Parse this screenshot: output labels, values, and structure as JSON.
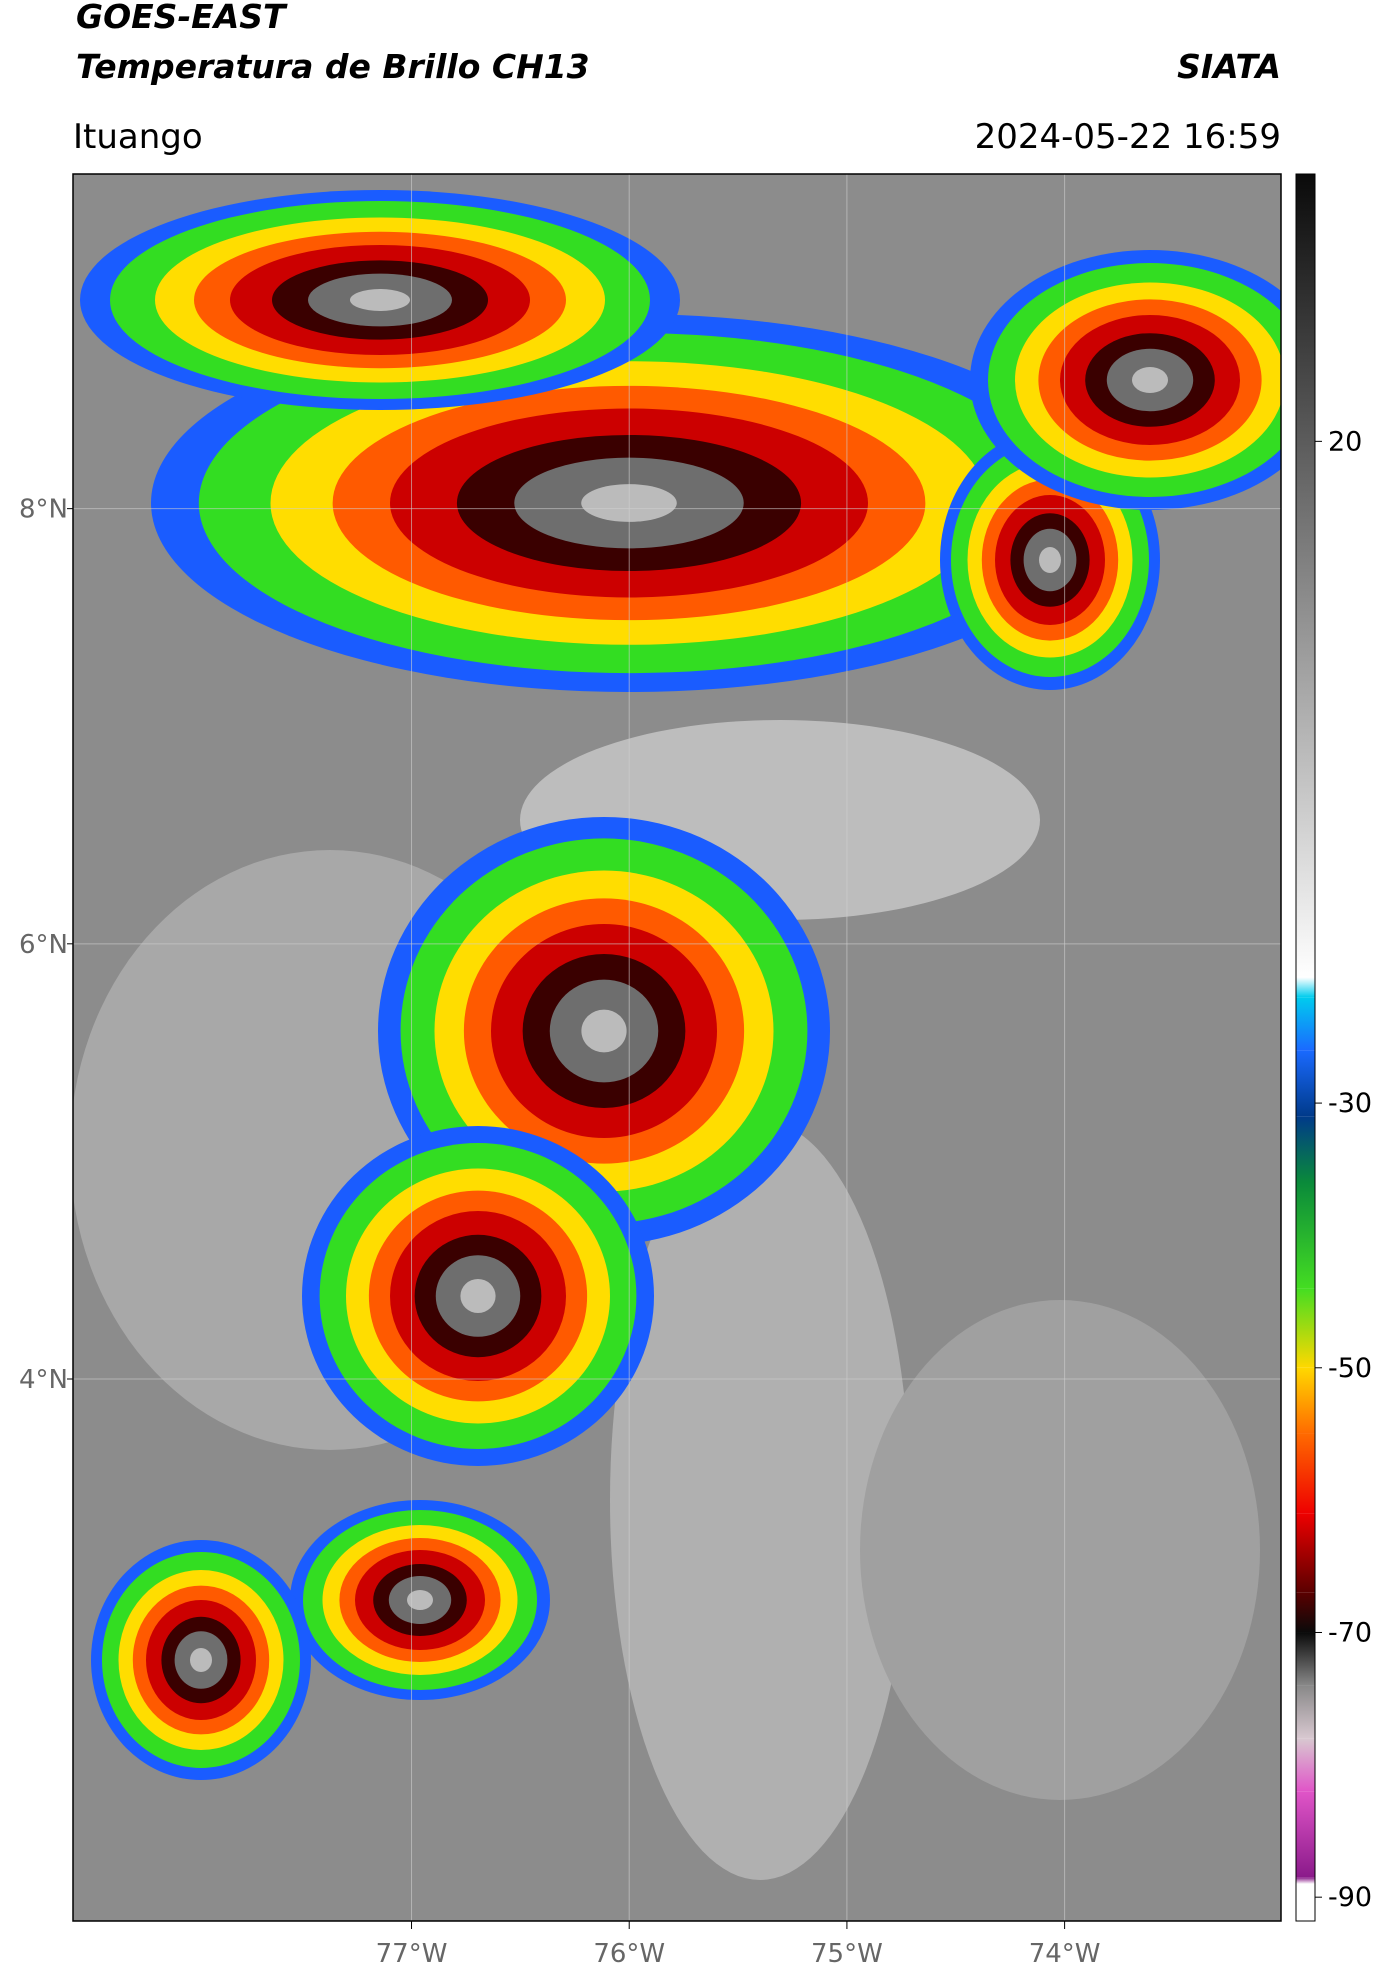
{
  "header": {
    "title": "GOES-EAST",
    "subtitle": "Temperatura de Brillo CH13",
    "brand": "SIATA",
    "location": "Ituango",
    "datetime": "2024-05-22 16:59"
  },
  "map": {
    "xlim": [
      -78.555,
      -73.006
    ],
    "ylim": [
      1.509,
      9.538
    ],
    "xticks": [
      {
        "value": -77,
        "label": "77°W"
      },
      {
        "value": -76,
        "label": "76°W"
      },
      {
        "value": -75,
        "label": "75°W"
      },
      {
        "value": -74,
        "label": "74°W"
      }
    ],
    "yticks": [
      {
        "value": 8,
        "label": "8°N"
      },
      {
        "value": 6,
        "label": "6°N"
      },
      {
        "value": 4,
        "label": "4°N"
      }
    ],
    "grid": true
  },
  "colorbar": {
    "lim": [
      -91.8,
      40.2
    ],
    "ticks": [
      20,
      -30,
      -50,
      -70,
      -90
    ],
    "stops": [
      [
        -91.8,
        "#ffffff"
      ],
      [
        -89,
        "#ffffff"
      ],
      [
        -88.5,
        "#8a1a8a"
      ],
      [
        -82,
        "#e055c8"
      ],
      [
        -78,
        "#d8c8d0"
      ],
      [
        -74,
        "#888888"
      ],
      [
        -70,
        "#0a0a0a"
      ],
      [
        -67,
        "#5a0000"
      ],
      [
        -61,
        "#ee0000"
      ],
      [
        -55,
        "#ff6a00"
      ],
      [
        -50,
        "#ffd800"
      ],
      [
        -44,
        "#44dd22"
      ],
      [
        -36,
        "#0a8a3a"
      ],
      [
        -31,
        "#003a8a"
      ],
      [
        -26,
        "#1a6aff"
      ],
      [
        -22,
        "#00ccee"
      ],
      [
        -20.5,
        "#ffffff"
      ],
      [
        40.2,
        "#0a0a0a"
      ]
    ]
  }
}
